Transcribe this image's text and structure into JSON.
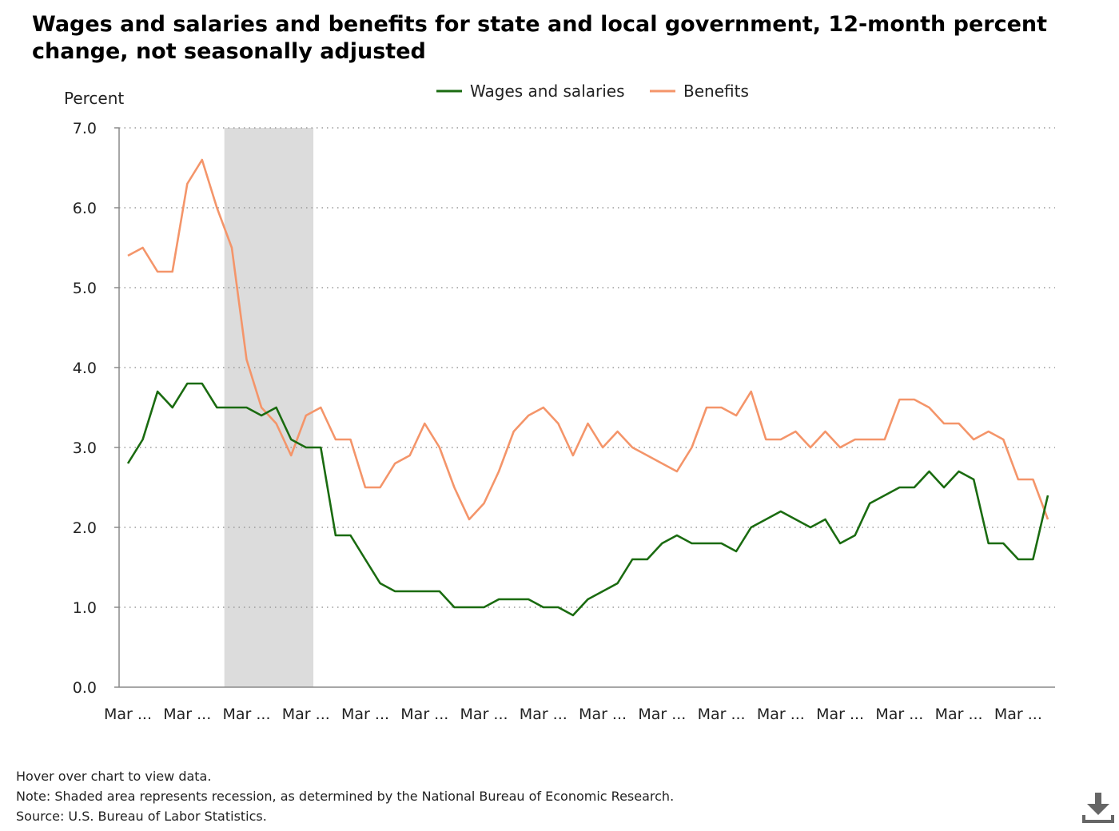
{
  "chart_data": {
    "type": "line",
    "title": "Wages and salaries and benefits for state and local government, 12-month percent change, not seasonally adjusted",
    "ylabel": "Percent",
    "xlabel": "",
    "ylim": [
      0,
      7
    ],
    "y_ticks": [
      "0.0",
      "1.0",
      "2.0",
      "3.0",
      "4.0",
      "5.0",
      "6.0",
      "7.0"
    ],
    "x_tick_labels": [
      "Mar ...",
      "Mar ...",
      "Mar ...",
      "Mar ...",
      "Mar ...",
      "Mar ...",
      "Mar ...",
      "Mar ...",
      "Mar ...",
      "Mar ...",
      "Mar ...",
      "Mar ...",
      "Mar ...",
      "Mar ...",
      "Mar ...",
      "Mar ..."
    ],
    "x_tick_index": [
      0,
      4,
      8,
      12,
      16,
      20,
      24,
      28,
      32,
      36,
      40,
      44,
      48,
      52,
      56,
      60
    ],
    "x_count": 63,
    "recession_index": [
      7,
      13
    ],
    "grid": true,
    "legend_position": "top-center",
    "series": [
      {
        "name": "Wages and salaries",
        "color": "#1a6b10",
        "values": [
          2.8,
          3.1,
          3.7,
          3.5,
          3.8,
          3.8,
          3.5,
          3.5,
          3.5,
          3.4,
          3.5,
          3.1,
          3.0,
          3.0,
          1.9,
          1.9,
          1.6,
          1.3,
          1.2,
          1.2,
          1.2,
          1.2,
          1.0,
          1.0,
          1.0,
          1.1,
          1.1,
          1.1,
          1.0,
          1.0,
          0.9,
          1.1,
          1.2,
          1.3,
          1.6,
          1.6,
          1.8,
          1.9,
          1.8,
          1.8,
          1.8,
          1.7,
          2.0,
          2.1,
          2.2,
          2.1,
          2.0,
          2.1,
          1.8,
          1.9,
          2.3,
          2.4,
          2.5,
          2.5,
          2.7,
          2.5,
          2.7,
          2.6,
          1.8,
          1.8,
          1.6,
          1.6,
          2.4
        ]
      },
      {
        "name": "Benefits",
        "color": "#f4956a",
        "values": [
          5.4,
          5.5,
          5.2,
          5.2,
          6.3,
          6.6,
          6.0,
          5.5,
          4.1,
          3.5,
          3.3,
          2.9,
          3.4,
          3.5,
          3.1,
          3.1,
          2.5,
          2.5,
          2.8,
          2.9,
          3.3,
          3.0,
          2.5,
          2.1,
          2.3,
          2.7,
          3.2,
          3.4,
          3.5,
          3.3,
          2.9,
          3.3,
          3.0,
          3.2,
          3.0,
          2.9,
          2.8,
          2.7,
          3.0,
          3.5,
          3.5,
          3.4,
          3.7,
          3.1,
          3.1,
          3.2,
          3.0,
          3.2,
          3.0,
          3.1,
          3.1,
          3.1,
          3.6,
          3.6,
          3.5,
          3.3,
          3.3,
          3.1,
          3.2,
          3.1,
          2.6,
          2.6,
          2.1
        ]
      }
    ]
  },
  "footer": {
    "hover_note": "Hover over chart to view data.",
    "recession_note": "Note: Shaded area represents recession, as determined by the National Bureau of Economic Research.",
    "source": "Source: U.S. Bureau of Labor Statistics."
  },
  "icons": {
    "download": "download-icon"
  }
}
